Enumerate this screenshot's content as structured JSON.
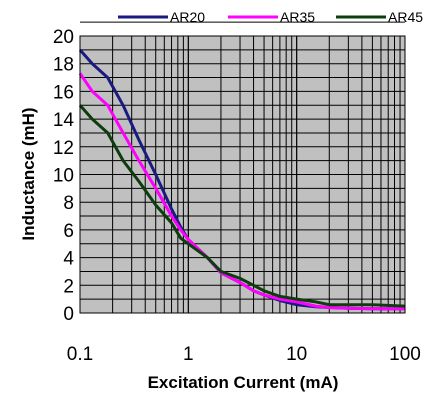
{
  "chart_data": {
    "type": "line",
    "xlabel": "Excitation Current (mA)",
    "ylabel": "Inductance (mH)",
    "x_scale": "log",
    "xlim": [
      0.1,
      100
    ],
    "ylim": [
      0,
      20
    ],
    "x_ticks": [
      0.1,
      1,
      10,
      100
    ],
    "x_tick_labels": [
      "0.1",
      "1",
      "10",
      "100"
    ],
    "y_ticks": [
      0,
      2,
      4,
      6,
      8,
      10,
      12,
      14,
      16,
      18,
      20
    ],
    "y_tick_labels": [
      "0",
      "2",
      "4",
      "6",
      "8",
      "10",
      "12",
      "14",
      "16",
      "18",
      "20"
    ],
    "grid": true,
    "plot_background": "#c0c0c0",
    "legend_position": "top",
    "series": [
      {
        "name": "AR20",
        "color": "#1a1a80",
        "x": [
          0.1,
          0.13,
          0.18,
          0.25,
          0.35,
          0.5,
          0.7,
          0.85,
          1.0,
          1.5,
          2.0,
          3.0,
          4.0,
          5.0,
          7.0,
          10,
          15,
          20,
          30,
          50,
          100
        ],
        "y": [
          19,
          18,
          17,
          15,
          12.5,
          10,
          7.5,
          6.2,
          5.3,
          4.0,
          2.9,
          2.2,
          1.6,
          1.3,
          0.9,
          0.6,
          0.45,
          0.4,
          0.35,
          0.3,
          0.3
        ]
      },
      {
        "name": "AR35",
        "color": "#ff00ff",
        "x": [
          0.1,
          0.13,
          0.18,
          0.25,
          0.35,
          0.5,
          0.7,
          0.85,
          1.0,
          1.5,
          2.0,
          3.0,
          4.0,
          5.0,
          7.0,
          10,
          15,
          20,
          30,
          50,
          100
        ],
        "y": [
          17.3,
          16.0,
          15.0,
          13.0,
          11.0,
          9.0,
          7.0,
          6.0,
          5.3,
          4.0,
          2.9,
          2.2,
          1.6,
          1.3,
          1.0,
          0.8,
          0.5,
          0.4,
          0.35,
          0.3,
          0.3
        ]
      },
      {
        "name": "AR45",
        "color": "#0d3d0d",
        "x": [
          0.1,
          0.13,
          0.18,
          0.25,
          0.35,
          0.5,
          0.7,
          0.85,
          1.0,
          1.5,
          2.0,
          3.0,
          4.0,
          5.0,
          7.0,
          10,
          15,
          20,
          30,
          50,
          100
        ],
        "y": [
          15.0,
          14.0,
          13.0,
          11.0,
          9.5,
          7.8,
          6.5,
          5.4,
          5.0,
          4.0,
          3.0,
          2.5,
          2.0,
          1.6,
          1.2,
          1.0,
          0.8,
          0.6,
          0.6,
          0.6,
          0.5
        ]
      }
    ]
  }
}
